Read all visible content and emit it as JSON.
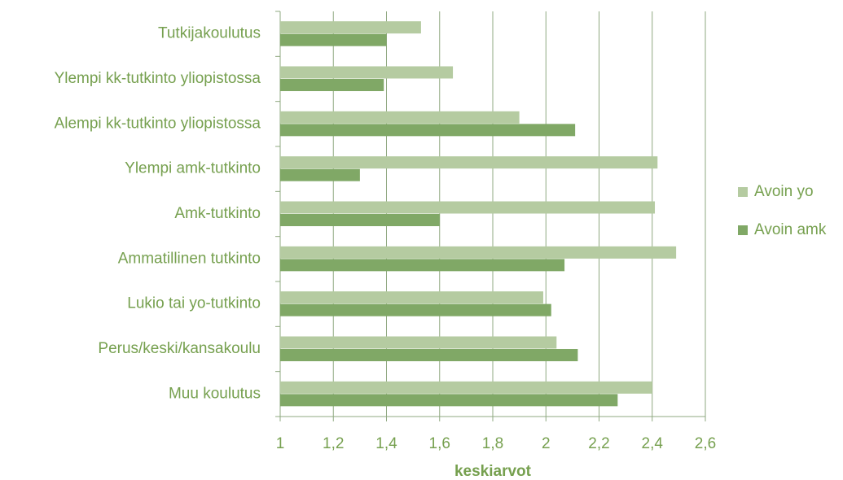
{
  "chart_data": {
    "type": "hbar",
    "xlabel": "keskiarvot",
    "categories": [
      "Tutkijakoulutus",
      "Ylempi kk-tutkinto yliopistossa",
      "Alempi kk-tutkinto yliopistossa",
      "Ylempi amk-tutkinto",
      "Amk-tutkinto",
      "Ammatillinen tutkinto",
      "Lukio tai yo-tutkinto",
      "Perus/keski/kansakoulu",
      "Muu koulutus"
    ],
    "series": [
      {
        "name": "Avoin yo",
        "color": "#b5cba1",
        "values": [
          1.53,
          1.65,
          1.9,
          2.42,
          2.41,
          2.49,
          1.99,
          2.04,
          2.4
        ]
      },
      {
        "name": "Avoin amk",
        "color": "#80a866",
        "values": [
          1.4,
          1.39,
          2.11,
          1.3,
          1.6,
          2.07,
          2.02,
          2.12,
          2.27
        ]
      }
    ],
    "xlim": [
      1,
      2.6
    ],
    "xticks": [
      1,
      {
        "value": 1.2,
        "label": "1,2"
      },
      {
        "value": 1.4,
        "label": "1,4"
      },
      {
        "value": 1.6,
        "label": "1,6"
      },
      {
        "value": 1.8,
        "label": "1,8"
      },
      2,
      {
        "value": 2.2,
        "label": "2,2"
      },
      {
        "value": 2.4,
        "label": "2,4"
      },
      {
        "value": 2.6,
        "label": "2,6"
      }
    ],
    "grid": true,
    "legend": "right"
  }
}
